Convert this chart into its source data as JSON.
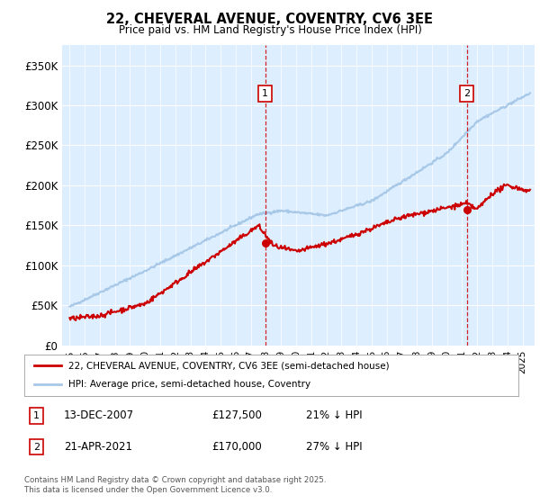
{
  "title": "22, CHEVERAL AVENUE, COVENTRY, CV6 3EE",
  "subtitle": "Price paid vs. HM Land Registry's House Price Index (HPI)",
  "ylabel_ticks": [
    "£0",
    "£50K",
    "£100K",
    "£150K",
    "£200K",
    "£250K",
    "£300K",
    "£350K"
  ],
  "ytick_values": [
    0,
    50000,
    100000,
    150000,
    200000,
    250000,
    300000,
    350000
  ],
  "ylim": [
    0,
    375000
  ],
  "xlim_start": 1994.5,
  "xlim_end": 2025.8,
  "hpi_color": "#a8c8e8",
  "price_color": "#cc0000",
  "annotation1": {
    "label": "1",
    "date": "13-DEC-2007",
    "price": "£127,500",
    "pct": "21% ↓ HPI",
    "x_year": 2007.96
  },
  "annotation2": {
    "label": "2",
    "date": "21-APR-2021",
    "price": "£170,000",
    "pct": "27% ↓ HPI",
    "x_year": 2021.3
  },
  "legend_line1": "22, CHEVERAL AVENUE, COVENTRY, CV6 3EE (semi-detached house)",
  "legend_line2": "HPI: Average price, semi-detached house, Coventry",
  "footer": "Contains HM Land Registry data © Crown copyright and database right 2025.\nThis data is licensed under the Open Government Licence v3.0.",
  "fig_bg_color": "#ffffff",
  "plot_bg_color": "#ddeeff"
}
